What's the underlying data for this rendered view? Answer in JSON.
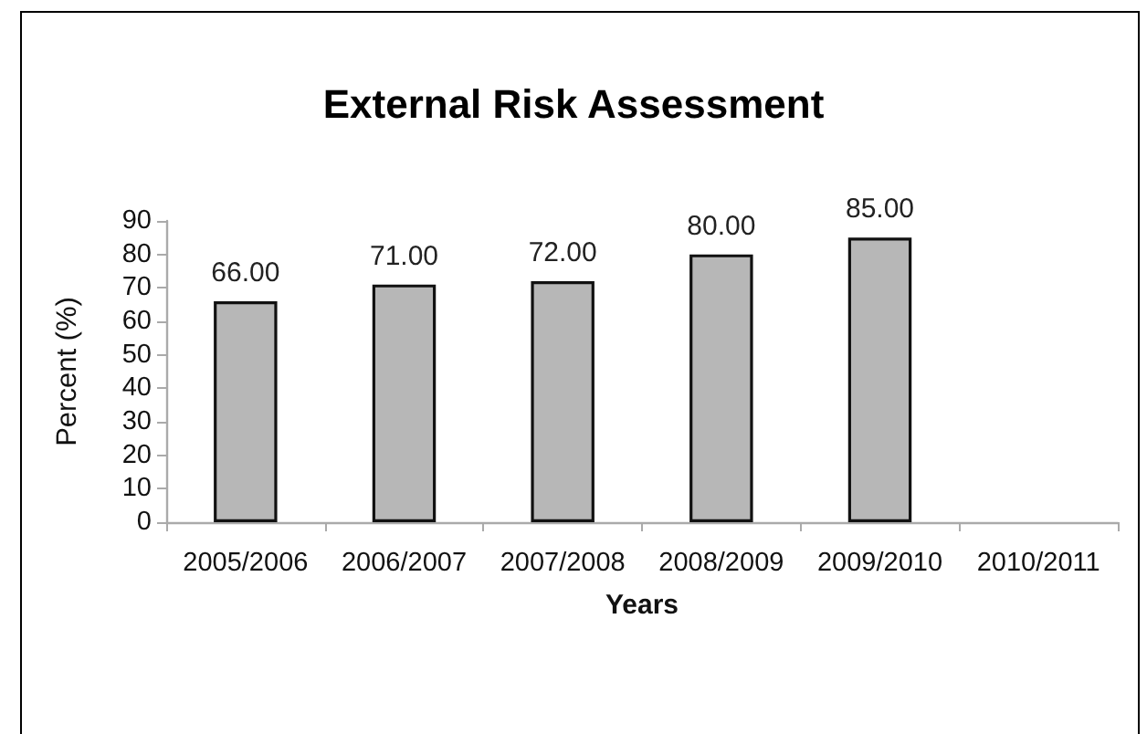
{
  "chart_data": {
    "type": "bar",
    "title": "External Risk Assessment",
    "xlabel": "Years",
    "ylabel": "Percent (%)",
    "categories": [
      "2005/2006",
      "2006/2007",
      "2007/2008",
      "2008/2009",
      "2009/2010",
      "2010/2011"
    ],
    "values": [
      66,
      71,
      72,
      80,
      85,
      null
    ],
    "value_labels": [
      "66.00",
      "71.00",
      "72.00",
      "80.00",
      "85.00",
      null
    ],
    "color": "#b7b7b7",
    "ylim": [
      0,
      90
    ],
    "yticks": [
      0,
      10,
      20,
      30,
      40,
      50,
      60,
      70,
      80,
      90
    ]
  }
}
